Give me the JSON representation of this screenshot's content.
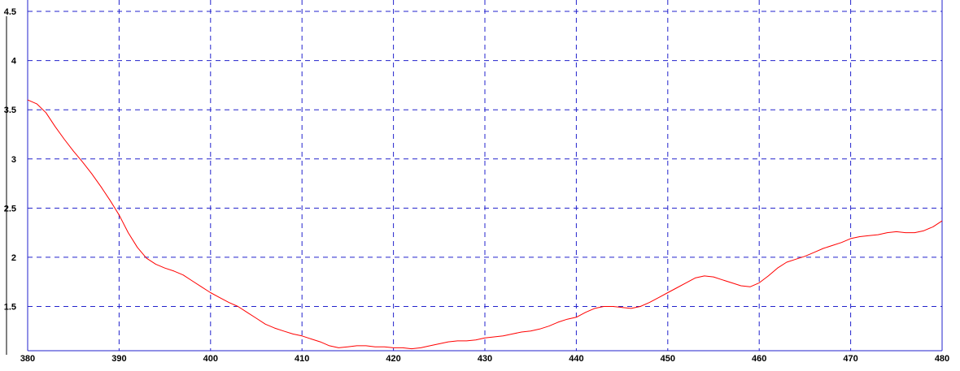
{
  "chart_data": {
    "type": "line",
    "title": "",
    "xlabel": "",
    "ylabel": "",
    "xlim": [
      380,
      480
    ],
    "ylim": [
      1.05,
      4.55
    ],
    "grid": true,
    "xticks": [
      "380",
      "390",
      "400",
      "410",
      "420",
      "430",
      "440",
      "450",
      "460",
      "470",
      "480"
    ],
    "yticks": [
      "1.5",
      "2",
      "2.5",
      "3",
      "3.5",
      "4",
      "4.5"
    ],
    "colors": {
      "line": "#ff0000",
      "grid": "#2222cc",
      "axis": "#2222cc",
      "tick_text": "#000000",
      "background": "#ffffff"
    },
    "series": [
      {
        "x": [
          380,
          381,
          382,
          383,
          384,
          385,
          386,
          387,
          388,
          389,
          390,
          391,
          392,
          393,
          394,
          395,
          396,
          397,
          398,
          399,
          400,
          401,
          402,
          403,
          404,
          405,
          406,
          407,
          408,
          409,
          410,
          411,
          412,
          413,
          414,
          415,
          416,
          417,
          418,
          419,
          420,
          421,
          422,
          423,
          424,
          425,
          426,
          427,
          428,
          429,
          430,
          431,
          432,
          433,
          434,
          435,
          436,
          437,
          438,
          439,
          440,
          441,
          442,
          443,
          444,
          445,
          446,
          447,
          448,
          449,
          450,
          451,
          452,
          453,
          454,
          455,
          456,
          457,
          458,
          459,
          460,
          461,
          462,
          463,
          464,
          465,
          466,
          467,
          468,
          469,
          470,
          471,
          472,
          473,
          474,
          475,
          476,
          477,
          478,
          479,
          480
        ],
        "y": [
          3.6,
          3.56,
          3.47,
          3.33,
          3.2,
          3.08,
          2.97,
          2.85,
          2.72,
          2.58,
          2.43,
          2.25,
          2.1,
          1.99,
          1.93,
          1.89,
          1.86,
          1.82,
          1.76,
          1.7,
          1.64,
          1.59,
          1.54,
          1.5,
          1.44,
          1.38,
          1.32,
          1.28,
          1.25,
          1.22,
          1.2,
          1.17,
          1.14,
          1.1,
          1.08,
          1.09,
          1.1,
          1.1,
          1.09,
          1.09,
          1.08,
          1.08,
          1.07,
          1.08,
          1.1,
          1.12,
          1.14,
          1.15,
          1.15,
          1.16,
          1.18,
          1.19,
          1.2,
          1.22,
          1.24,
          1.25,
          1.27,
          1.3,
          1.34,
          1.37,
          1.39,
          1.44,
          1.48,
          1.5,
          1.5,
          1.49,
          1.48,
          1.5,
          1.54,
          1.59,
          1.64,
          1.69,
          1.74,
          1.79,
          1.81,
          1.8,
          1.77,
          1.74,
          1.71,
          1.7,
          1.74,
          1.81,
          1.89,
          1.95,
          1.98,
          2.01,
          2.05,
          2.09,
          2.12,
          2.15,
          2.19,
          2.21,
          2.22,
          2.23,
          2.25,
          2.26,
          2.25,
          2.25,
          2.27,
          2.31,
          2.37
        ]
      }
    ]
  }
}
